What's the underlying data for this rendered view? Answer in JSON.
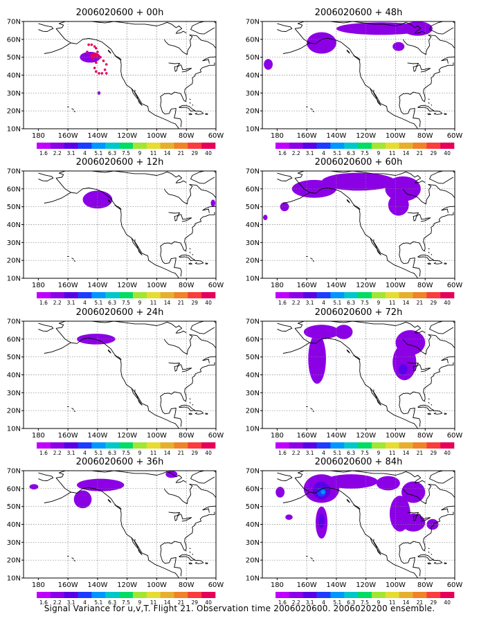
{
  "caption": "Signal Variance for u,v,T. Flight 21. Observation time 2006020600. 2006020200 ensemble.",
  "colors": {
    "scale": [
      "#c000ff",
      "#8c00e6",
      "#5a00e6",
      "#1e3cff",
      "#0096ff",
      "#00c8c8",
      "#00dc64",
      "#a0e632",
      "#e6dc32",
      "#e6af2d",
      "#f08228",
      "#fa3c3c",
      "#e6005a"
    ],
    "land": "#000000",
    "grid": "#7f7f7f"
  },
  "chart_data": [
    {
      "type": "heatmap",
      "title": "2006020600 + 00h",
      "x_ticks": [
        "180",
        "160W",
        "140W",
        "120W",
        "100W",
        "80W",
        "60W"
      ],
      "y_ticks": [
        "10N",
        "20N",
        "30N",
        "40N",
        "50N",
        "60N",
        "70N"
      ],
      "xlim": [
        -190,
        -60
      ],
      "ylim": [
        10,
        70
      ],
      "color_levels": [
        "1.6",
        "2.2",
        "3.1",
        "4",
        "5.1",
        "6.3",
        "7.5",
        "9",
        "11",
        "14",
        "21",
        "29",
        "40"
      ],
      "features": [
        {
          "lon": -145,
          "lat": 50,
          "rx": 7,
          "ry": 3,
          "level": 1
        },
        {
          "lon": -142,
          "lat": 51,
          "rx": 3,
          "ry": 1.5,
          "level": 12
        },
        {
          "lon": -139,
          "lat": 30,
          "rx": 1,
          "ry": 1,
          "level": 1
        }
      ],
      "points": [
        [
          -146,
          57
        ],
        [
          -144,
          57
        ],
        [
          -142,
          56
        ],
        [
          -141,
          55
        ],
        [
          -140,
          53
        ],
        [
          -138,
          50
        ],
        [
          -136,
          48
        ],
        [
          -134,
          46
        ],
        [
          -135,
          43
        ],
        [
          -134,
          41
        ],
        [
          -137,
          41
        ],
        [
          -139,
          41
        ],
        [
          -141,
          42
        ],
        [
          -142,
          44
        ],
        [
          -141,
          47
        ],
        [
          -143,
          49
        ],
        [
          -144,
          51
        ],
        [
          -147,
          53
        ]
      ]
    },
    {
      "type": "heatmap",
      "title": "2006020600 + 48h",
      "x_ticks": [
        "180",
        "160W",
        "140W",
        "120W",
        "100W",
        "80W",
        "60W"
      ],
      "y_ticks": [
        "10N",
        "20N",
        "30N",
        "40N",
        "50N",
        "60N",
        "70N"
      ],
      "xlim": [
        -190,
        -60
      ],
      "ylim": [
        10,
        70
      ],
      "color_levels": [
        "1.6",
        "2.2",
        "3.1",
        "4",
        "5.1",
        "6.3",
        "7.5",
        "9",
        "11",
        "14",
        "21",
        "29",
        "40"
      ],
      "features": [
        {
          "lon": -150,
          "lat": 58,
          "rx": 10,
          "ry": 6,
          "level": 1
        },
        {
          "lon": -110,
          "lat": 66,
          "rx": 30,
          "ry": 3.5,
          "level": 1
        },
        {
          "lon": -85,
          "lat": 66,
          "rx": 10,
          "ry": 4,
          "level": 1
        },
        {
          "lon": -98,
          "lat": 56,
          "rx": 4,
          "ry": 2.5,
          "level": 1
        },
        {
          "lon": -186,
          "lat": 46,
          "rx": 3,
          "ry": 3,
          "level": 1
        }
      ]
    },
    {
      "type": "heatmap",
      "title": "2006020600 + 12h",
      "x_ticks": [
        "180",
        "160W",
        "140W",
        "120W",
        "100W",
        "80W",
        "60W"
      ],
      "y_ticks": [
        "10N",
        "20N",
        "30N",
        "40N",
        "50N",
        "60N",
        "70N"
      ],
      "xlim": [
        -190,
        -60
      ],
      "ylim": [
        10,
        70
      ],
      "color_levels": [
        "1.6",
        "2.2",
        "3.1",
        "4",
        "5.1",
        "6.3",
        "7.5",
        "9",
        "11",
        "14",
        "21",
        "29",
        "40"
      ],
      "features": [
        {
          "lon": -140,
          "lat": 54,
          "rx": 10,
          "ry": 5,
          "level": 1
        },
        {
          "lon": -62,
          "lat": 52,
          "rx": 1.5,
          "ry": 2,
          "level": 1
        }
      ]
    },
    {
      "type": "heatmap",
      "title": "2006020600 + 60h",
      "x_ticks": [
        "180",
        "160W",
        "140W",
        "120W",
        "100W",
        "80W",
        "60W"
      ],
      "y_ticks": [
        "10N",
        "20N",
        "30N",
        "40N",
        "50N",
        "60N",
        "70N"
      ],
      "xlim": [
        -190,
        -60
      ],
      "ylim": [
        10,
        70
      ],
      "color_levels": [
        "1.6",
        "2.2",
        "3.1",
        "4",
        "5.1",
        "6.3",
        "7.5",
        "9",
        "11",
        "14",
        "21",
        "29",
        "40"
      ],
      "features": [
        {
          "lon": -155,
          "lat": 60,
          "rx": 15,
          "ry": 5,
          "level": 1
        },
        {
          "lon": -125,
          "lat": 64,
          "rx": 25,
          "ry": 5,
          "level": 1
        },
        {
          "lon": -95,
          "lat": 60,
          "rx": 12,
          "ry": 7,
          "level": 1
        },
        {
          "lon": -98,
          "lat": 51,
          "rx": 7,
          "ry": 6,
          "level": 1
        },
        {
          "lon": -175,
          "lat": 50,
          "rx": 3,
          "ry": 2.5,
          "level": 1
        },
        {
          "lon": -188,
          "lat": 44,
          "rx": 1.5,
          "ry": 1.5,
          "level": 1
        }
      ]
    },
    {
      "type": "heatmap",
      "title": "2006020600 + 24h",
      "x_ticks": [
        "180",
        "160W",
        "140W",
        "120W",
        "100W",
        "80W",
        "60W"
      ],
      "y_ticks": [
        "10N",
        "20N",
        "30N",
        "40N",
        "50N",
        "60N",
        "70N"
      ],
      "xlim": [
        -190,
        -60
      ],
      "ylim": [
        10,
        70
      ],
      "color_levels": [
        "1.6",
        "2.2",
        "3.1",
        "4",
        "5.1",
        "6.3",
        "7.5",
        "9",
        "11",
        "14",
        "21",
        "29",
        "40"
      ],
      "features": [
        {
          "lon": -141,
          "lat": 60,
          "rx": 13,
          "ry": 3,
          "level": 1
        }
      ]
    },
    {
      "type": "heatmap",
      "title": "2006020600 + 72h",
      "x_ticks": [
        "180",
        "160W",
        "140W",
        "120W",
        "100W",
        "80W",
        "60W"
      ],
      "y_ticks": [
        "10N",
        "20N",
        "30N",
        "40N",
        "50N",
        "60N",
        "70N"
      ],
      "xlim": [
        -190,
        -60
      ],
      "ylim": [
        10,
        70
      ],
      "color_levels": [
        "1.6",
        "2.2",
        "3.1",
        "4",
        "5.1",
        "6.3",
        "7.5",
        "9",
        "11",
        "14",
        "21",
        "29",
        "40"
      ],
      "features": [
        {
          "lon": -150,
          "lat": 64,
          "rx": 12,
          "ry": 4,
          "level": 1
        },
        {
          "lon": -153,
          "lat": 49,
          "rx": 6,
          "ry": 14,
          "level": 1
        },
        {
          "lon": -135,
          "lat": 64,
          "rx": 6,
          "ry": 4,
          "level": 1
        },
        {
          "lon": -90,
          "lat": 58,
          "rx": 10,
          "ry": 7,
          "level": 1
        },
        {
          "lon": -94,
          "lat": 47,
          "rx": 8,
          "ry": 10,
          "level": 1
        },
        {
          "lon": -95,
          "lat": 43,
          "rx": 3,
          "ry": 3,
          "level": 2
        }
      ]
    },
    {
      "type": "heatmap",
      "title": "2006020600 + 36h",
      "x_ticks": [
        "180",
        "160W",
        "140W",
        "120W",
        "100W",
        "80W",
        "60W"
      ],
      "y_ticks": [
        "10N",
        "20N",
        "30N",
        "40N",
        "50N",
        "60N",
        "70N"
      ],
      "xlim": [
        -190,
        -60
      ],
      "ylim": [
        10,
        70
      ],
      "color_levels": [
        "1.6",
        "2.2",
        "3.1",
        "4",
        "5.1",
        "6.3",
        "7.5",
        "9",
        "11",
        "14",
        "21",
        "29",
        "40"
      ],
      "features": [
        {
          "lon": -138,
          "lat": 62,
          "rx": 16,
          "ry": 3.5,
          "level": 1
        },
        {
          "lon": -150,
          "lat": 54,
          "rx": 6,
          "ry": 5,
          "level": 1
        },
        {
          "lon": -90,
          "lat": 68,
          "rx": 4,
          "ry": 2,
          "level": 1
        },
        {
          "lon": -183,
          "lat": 61,
          "rx": 3,
          "ry": 1.5,
          "level": 1
        }
      ]
    },
    {
      "type": "heatmap",
      "title": "2006020600 + 84h",
      "x_ticks": [
        "180",
        "160W",
        "140W",
        "120W",
        "100W",
        "80W",
        "60W"
      ],
      "y_ticks": [
        "10N",
        "20N",
        "30N",
        "40N",
        "50N",
        "60N",
        "70N"
      ],
      "xlim": [
        -190,
        -60
      ],
      "ylim": [
        10,
        70
      ],
      "color_levels": [
        "1.6",
        "2.2",
        "3.1",
        "4",
        "5.1",
        "6.3",
        "7.5",
        "9",
        "11",
        "14",
        "21",
        "29",
        "40"
      ],
      "features": [
        {
          "lon": -150,
          "lat": 60,
          "rx": 12,
          "ry": 8,
          "level": 1
        },
        {
          "lon": -150,
          "lat": 59,
          "rx": 6,
          "ry": 5,
          "level": 2
        },
        {
          "lon": -150,
          "lat": 58,
          "rx": 3,
          "ry": 2.5,
          "level": 3
        },
        {
          "lon": -149,
          "lat": 58,
          "rx": 1.5,
          "ry": 1.2,
          "level": 4
        },
        {
          "lon": -150,
          "lat": 41,
          "rx": 4,
          "ry": 9,
          "level": 1
        },
        {
          "lon": -150,
          "lat": 42,
          "rx": 2,
          "ry": 4,
          "level": 2
        },
        {
          "lon": -130,
          "lat": 64,
          "rx": 18,
          "ry": 4,
          "level": 1
        },
        {
          "lon": -105,
          "lat": 63,
          "rx": 8,
          "ry": 4,
          "level": 1
        },
        {
          "lon": -88,
          "lat": 58,
          "rx": 8,
          "ry": 6,
          "level": 1
        },
        {
          "lon": -97,
          "lat": 46,
          "rx": 7,
          "ry": 10,
          "level": 1
        },
        {
          "lon": -88,
          "lat": 41,
          "rx": 8,
          "ry": 5,
          "level": 1
        },
        {
          "lon": -75,
          "lat": 40,
          "rx": 4,
          "ry": 3,
          "level": 1
        },
        {
          "lon": -178,
          "lat": 58,
          "rx": 3,
          "ry": 3,
          "level": 1
        },
        {
          "lon": -172,
          "lat": 44,
          "rx": 2.5,
          "ry": 1.5,
          "level": 1
        }
      ]
    }
  ]
}
